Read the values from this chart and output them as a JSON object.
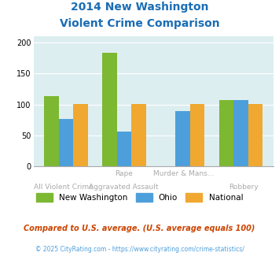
{
  "title_line1": "2014 New Washington",
  "title_line2": "Violent Crime Comparison",
  "nw_values": [
    114,
    183,
    0,
    107
  ],
  "ohio_values": [
    76,
    56,
    89,
    107
  ],
  "nat_values": [
    101,
    101,
    101,
    101
  ],
  "colors_nw": "#7cb832",
  "colors_ohio": "#4d9fdb",
  "colors_nat": "#f0a830",
  "bg_color": "#ddeef0",
  "title_color": "#1a6db5",
  "ylim": [
    0,
    210
  ],
  "yticks": [
    0,
    50,
    100,
    150,
    200
  ],
  "legend_nw": "New Washington",
  "legend_ohio": "Ohio",
  "legend_nat": "National",
  "top_labels": [
    "",
    "Rape",
    "Murder & Mans...",
    ""
  ],
  "bot_labels": [
    "All Violent Crime",
    "Aggravated Assault",
    "",
    "Robbery"
  ],
  "footnote1": "Compared to U.S. average. (U.S. average equals 100)",
  "footnote2": "© 2025 CityRating.com - https://www.cityrating.com/crime-statistics/"
}
